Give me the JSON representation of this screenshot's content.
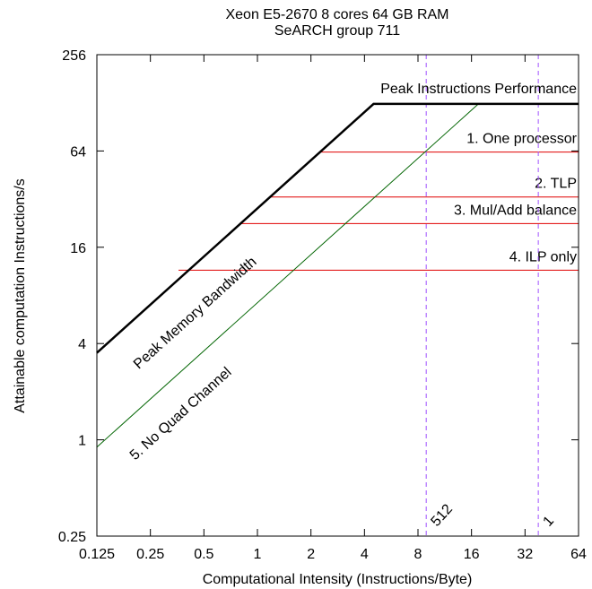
{
  "chart_data": {
    "type": "line",
    "title": "Xeon E5-2670    8 cores    64 GB RAM",
    "subtitle": "SeARCH group 711",
    "xlabel": "Computational Intensity (Instructions/Byte)",
    "ylabel": "Attainable computation Instructions/s",
    "xscale": "log2",
    "yscale": "log2",
    "xlim": [
      0.125,
      64
    ],
    "ylim": [
      0.25,
      256
    ],
    "xticks": [
      0.125,
      0.25,
      0.5,
      1,
      2,
      4,
      8,
      16,
      32,
      64
    ],
    "xtick_labels": [
      "0.125",
      "0.25",
      "0.5",
      "1",
      "2",
      "4",
      "8",
      "16",
      "32",
      "64"
    ],
    "yticks": [
      0.25,
      1,
      4,
      16,
      64,
      256
    ],
    "ytick_labels": [
      "0.25",
      "1",
      "4",
      "16",
      "64",
      "256"
    ],
    "grid": false,
    "roofline": {
      "color": "#000000",
      "points": [
        [
          0.125,
          3.5
        ],
        [
          4.5,
          126
        ],
        [
          64,
          126
        ]
      ],
      "labels": {
        "bandwidth": "Peak Memory Bandwidth",
        "peak": "Peak Instructions Performance"
      }
    },
    "ceilings": [
      {
        "label": "1. One processor",
        "y": 63,
        "x_start": 2.25,
        "color": "#e00000"
      },
      {
        "label": "2. TLP",
        "y": 33,
        "x_start": 1.17,
        "color": "#e00000"
      },
      {
        "label": "3. Mul/Add balance",
        "y": 22.5,
        "x_start": 0.8,
        "color": "#e00000"
      },
      {
        "label": "4. ILP only",
        "y": 11.5,
        "x_start": 0.36,
        "color": "#e00000"
      }
    ],
    "diagonal": {
      "label": "5. No Quad Channel",
      "color": "#006400",
      "points": [
        [
          0.125,
          0.9
        ],
        [
          17.5,
          126
        ]
      ]
    },
    "vertical_markers": [
      {
        "label": "512",
        "x": 8.9,
        "color": "#a050ff"
      },
      {
        "label": "1",
        "x": 38,
        "color": "#a050ff"
      }
    ]
  }
}
